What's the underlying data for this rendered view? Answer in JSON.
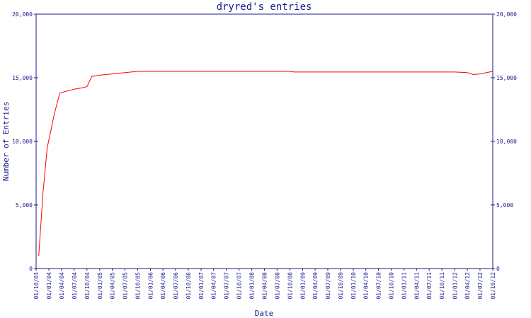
{
  "chart_data": {
    "type": "line",
    "title": "dryred's entries",
    "xlabel": "Date",
    "ylabel": "Number of Entries",
    "ylim": [
      0,
      20000
    ],
    "yticks": [
      0,
      5000,
      10000,
      15000,
      20000
    ],
    "ytick_labels": [
      "0",
      "5,000",
      "10,000",
      "15,000",
      "20,000"
    ],
    "xticks": [
      "01/10/03",
      "01/01/04",
      "01/04/04",
      "01/07/04",
      "01/10/04",
      "01/01/05",
      "01/04/05",
      "01/07/05",
      "01/10/05",
      "01/01/06",
      "01/04/06",
      "01/07/06",
      "01/10/06",
      "01/01/07",
      "01/04/07",
      "01/07/07",
      "01/10/07",
      "01/01/08",
      "01/04/08",
      "01/07/08",
      "01/10/08",
      "01/01/09",
      "01/04/09",
      "01/07/09",
      "01/10/09",
      "01/01/10",
      "01/04/10",
      "01/07/10",
      "01/10/10",
      "01/01/11",
      "01/04/11",
      "01/07/11",
      "01/10/11",
      "01/01/12",
      "01/04/12",
      "01/07/12",
      "01/10/12"
    ],
    "grid": false,
    "line_color": "#ff0000",
    "series": [
      {
        "x": [
          "2003-10-20",
          "2003-11-20",
          "2003-12-20",
          "2004-02-10",
          "2004-03-20",
          "2004-07-01",
          "2004-08-25",
          "2004-10-01",
          "2004-11-05",
          "2005-01-01",
          "2005-04-01",
          "2005-07-01",
          "2005-10-01",
          "2006-04-01",
          "2006-10-01",
          "2007-04-01",
          "2007-10-01",
          "2008-04-01",
          "2008-10-01",
          "2008-11-01",
          "2009-04-01",
          "2009-10-01",
          "2010-04-01",
          "2010-10-01",
          "2011-04-01",
          "2011-10-01",
          "2012-01-01",
          "2012-04-01",
          "2012-05-15",
          "2012-07-01",
          "2012-10-01"
        ],
        "y": [
          1000,
          6000,
          9500,
          12200,
          13800,
          14100,
          14200,
          14300,
          15100,
          15200,
          15300,
          15400,
          15500,
          15500,
          15500,
          15500,
          15500,
          15500,
          15500,
          15450,
          15450,
          15450,
          15450,
          15450,
          15450,
          15450,
          15450,
          15400,
          15250,
          15300,
          15500
        ]
      }
    ]
  }
}
